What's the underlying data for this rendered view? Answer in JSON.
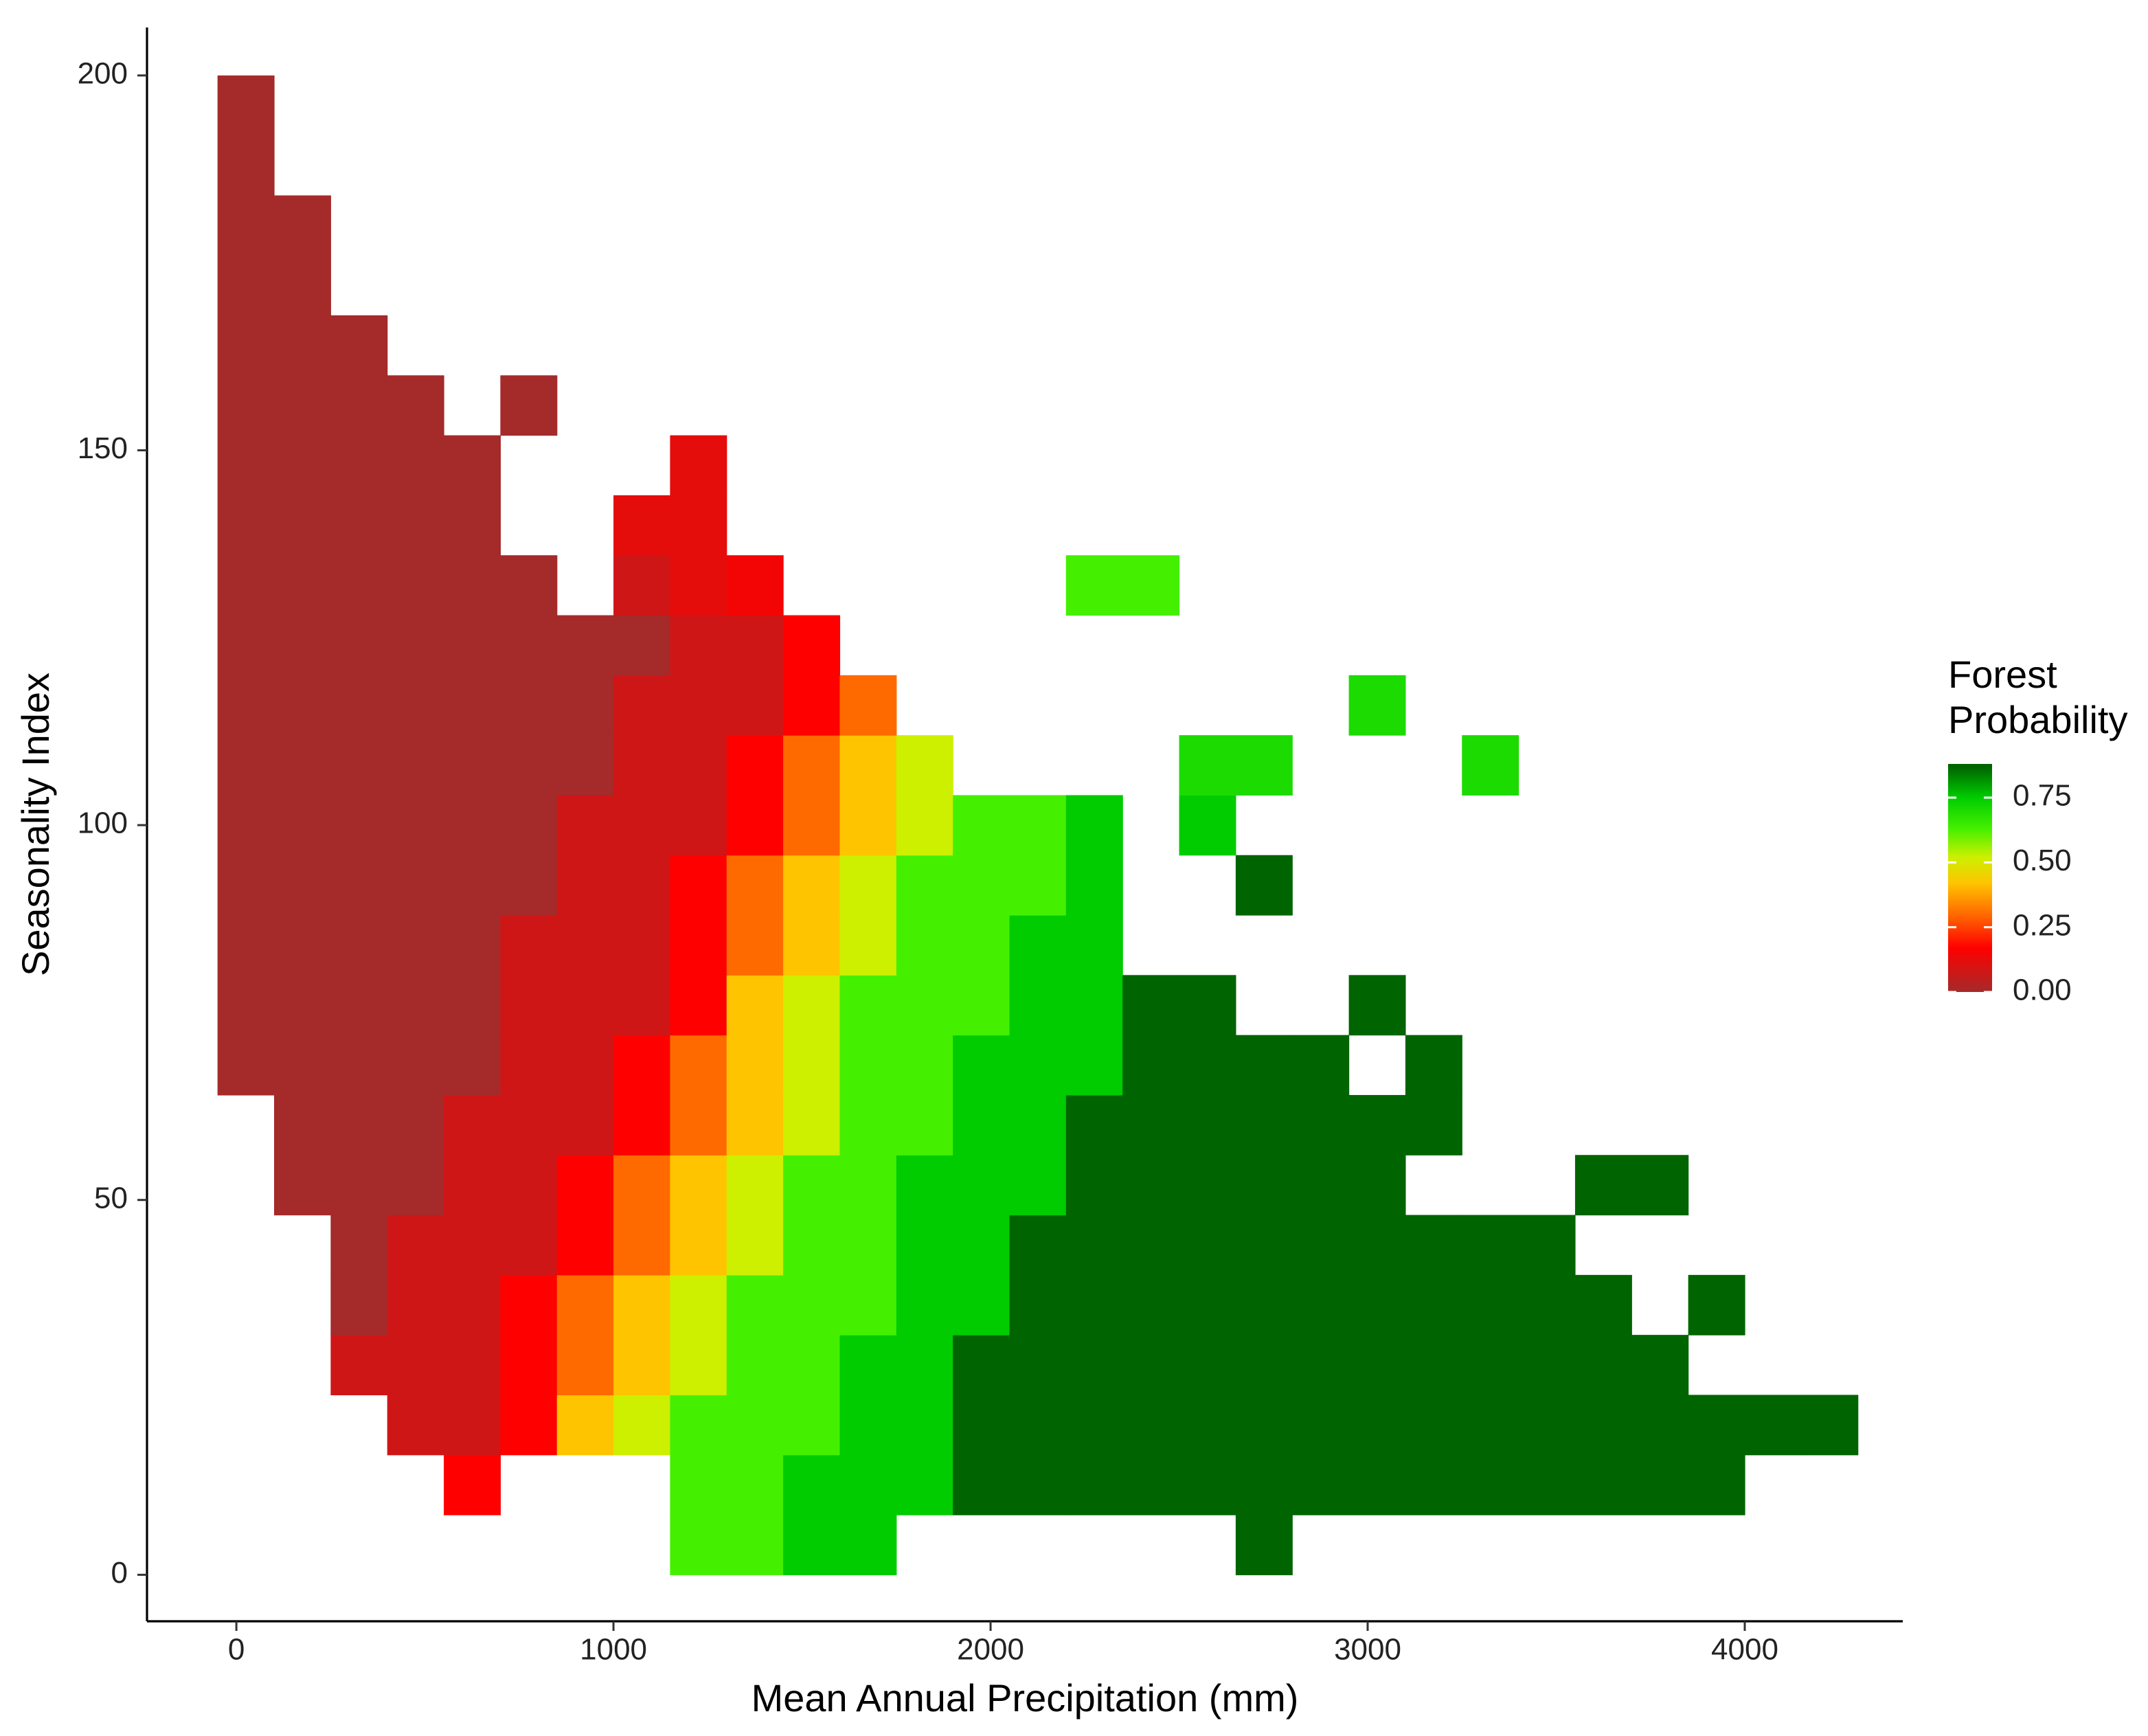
{
  "chart_data": {
    "type": "heatmap",
    "x_label": "Mean Annual Precipitation (mm)",
    "y_label": "Seasonality Index",
    "legend_title": [
      "Forest",
      "Probability"
    ],
    "xlim": [
      -237,
      4419
    ],
    "ylim": [
      -6.2,
      206.4
    ],
    "xticks": [
      0,
      1000,
      2000,
      3000,
      4000
    ],
    "yticks": [
      0,
      50,
      100,
      150,
      200
    ],
    "zlim": [
      0,
      0.88
    ],
    "legend_ticks": [
      {
        "value": 0,
        "label": "0.00"
      },
      0.25,
      {
        "value": 0.5,
        "label": "0.50"
      },
      0.75
    ],
    "colorscale": [
      {
        "value": 0,
        "color": "#a52a2a"
      },
      {
        "value": 0.17,
        "color": "#ff0000"
      },
      {
        "value": 0.3,
        "color": "#ff6a00"
      },
      {
        "value": 0.42,
        "color": "#ffc400"
      },
      {
        "value": 0.52,
        "color": "#ccf000"
      },
      {
        "value": 0.63,
        "color": "#44f000"
      },
      {
        "value": 0.75,
        "color": "#00cc00"
      },
      {
        "value": 0.87,
        "color": "#006400"
      }
    ],
    "x_bins": [
      -50,
      100,
      250,
      400,
      550,
      700,
      850,
      1000,
      1150,
      1300,
      1450,
      1600,
      1750,
      1900,
      2050,
      2200,
      2350,
      2500,
      2650,
      2800,
      2950,
      3100,
      3250,
      3400,
      3550,
      3700,
      3850,
      4000,
      4150,
      4300
    ],
    "y_bins": [
      0,
      8,
      16,
      24,
      32,
      40,
      48,
      56,
      64,
      72,
      80,
      88,
      96,
      104,
      112,
      120,
      128,
      136,
      144,
      152,
      160,
      168,
      176,
      184,
      192,
      200
    ],
    "z": [
      [
        null,
        null,
        null,
        null,
        null,
        null,
        null,
        null,
        0.63,
        0.63,
        0.75,
        0.75,
        null,
        null,
        null,
        null,
        null,
        null,
        0.87,
        null,
        null,
        null,
        null,
        null,
        null,
        null,
        null,
        null,
        null
      ],
      [
        null,
        null,
        null,
        null,
        0.17,
        null,
        null,
        null,
        0.63,
        0.63,
        0.75,
        0.75,
        0.75,
        0.87,
        0.87,
        0.87,
        0.87,
        0.87,
        0.87,
        0.87,
        0.87,
        0.87,
        0.87,
        0.87,
        0.87,
        0.87,
        0.87,
        null,
        null
      ],
      [
        null,
        null,
        null,
        0.08,
        0.08,
        0.17,
        0.42,
        0.52,
        0.63,
        0.63,
        0.63,
        0.75,
        0.75,
        0.87,
        0.87,
        0.87,
        0.87,
        0.87,
        0.87,
        0.87,
        0.87,
        0.87,
        0.87,
        0.87,
        0.87,
        0.87,
        0.87,
        0.87,
        0.87
      ],
      [
        null,
        null,
        0.08,
        0.08,
        0.08,
        0.17,
        0.3,
        0.42,
        0.52,
        0.63,
        0.63,
        0.75,
        0.75,
        0.87,
        0.87,
        0.87,
        0.87,
        0.87,
        0.87,
        0.87,
        0.87,
        0.87,
        0.87,
        0.87,
        0.87,
        0.87,
        null,
        null,
        null
      ],
      [
        null,
        null,
        0,
        0.08,
        0.08,
        0.17,
        0.3,
        0.42,
        0.52,
        0.63,
        0.63,
        0.63,
        0.75,
        0.75,
        0.87,
        0.87,
        0.87,
        0.87,
        0.87,
        0.87,
        0.87,
        0.87,
        0.87,
        0.87,
        0.87,
        null,
        0.87,
        null,
        null
      ],
      [
        null,
        null,
        0,
        0.08,
        0.08,
        0.08,
        0.17,
        0.3,
        0.42,
        0.52,
        0.63,
        0.63,
        0.75,
        0.75,
        0.87,
        0.87,
        0.87,
        0.87,
        0.87,
        0.87,
        0.87,
        0.87,
        0.87,
        0.87,
        null,
        null,
        null,
        null,
        null
      ],
      [
        null,
        0,
        0,
        0,
        0.08,
        0.08,
        0.17,
        0.3,
        0.42,
        0.52,
        0.63,
        0.63,
        0.75,
        0.75,
        0.75,
        0.87,
        0.87,
        0.87,
        0.87,
        0.87,
        0.87,
        null,
        null,
        null,
        0.87,
        0.87,
        null,
        null,
        null
      ],
      [
        null,
        0,
        0,
        0,
        0.08,
        0.08,
        0.08,
        0.17,
        0.3,
        0.42,
        0.52,
        0.63,
        0.63,
        0.75,
        0.75,
        0.87,
        0.87,
        0.87,
        0.87,
        0.87,
        0.87,
        0.87,
        null,
        null,
        null,
        null,
        null,
        null,
        null
      ],
      [
        0,
        0,
        0,
        0,
        0,
        0.08,
        0.08,
        0.17,
        0.3,
        0.42,
        0.52,
        0.63,
        0.63,
        0.75,
        0.75,
        0.75,
        0.87,
        0.87,
        0.87,
        0.87,
        null,
        0.87,
        null,
        null,
        null,
        null,
        null,
        null,
        null
      ],
      [
        0,
        0,
        0,
        0,
        0,
        0.08,
        0.08,
        0.08,
        0.17,
        0.42,
        0.52,
        0.63,
        0.63,
        0.63,
        0.75,
        0.75,
        0.87,
        0.87,
        null,
        null,
        0.87,
        null,
        null,
        null,
        null,
        null,
        null,
        null,
        null
      ],
      [
        0,
        0,
        0,
        0,
        0,
        0.08,
        0.08,
        0.08,
        0.17,
        0.3,
        0.42,
        0.52,
        0.63,
        0.63,
        0.75,
        0.75,
        null,
        null,
        null,
        null,
        null,
        null,
        null,
        null,
        null,
        null,
        null,
        null,
        null
      ],
      [
        0,
        0,
        0,
        0,
        0,
        0,
        0.08,
        0.08,
        0.17,
        0.3,
        0.42,
        0.52,
        0.63,
        0.63,
        0.63,
        0.75,
        null,
        null,
        0.87,
        null,
        null,
        null,
        null,
        null,
        null,
        null,
        null,
        null,
        null
      ],
      [
        0,
        0,
        0,
        0,
        0,
        0,
        0.08,
        0.08,
        0.08,
        0.17,
        0.3,
        0.42,
        0.52,
        0.63,
        0.63,
        0.75,
        null,
        0.75,
        null,
        null,
        null,
        null,
        null,
        null,
        null,
        null,
        null,
        null,
        null
      ],
      [
        0,
        0,
        0,
        0,
        0,
        0,
        0,
        0.08,
        0.08,
        0.17,
        0.3,
        0.42,
        0.52,
        null,
        null,
        null,
        null,
        0.7,
        0.7,
        null,
        null,
        null,
        0.7,
        null,
        null,
        null,
        null,
        null,
        null
      ],
      [
        0,
        0,
        0,
        0,
        0,
        0,
        0,
        0.08,
        0.08,
        0.08,
        0.17,
        0.3,
        null,
        null,
        null,
        null,
        null,
        null,
        null,
        null,
        0.7,
        null,
        null,
        null,
        null,
        null,
        null,
        null,
        null
      ],
      [
        0,
        0,
        0,
        0,
        0,
        0,
        0,
        0,
        0.08,
        0.08,
        0.17,
        null,
        null,
        null,
        null,
        null,
        null,
        null,
        null,
        null,
        null,
        null,
        null,
        null,
        null,
        null,
        null,
        null,
        null
      ],
      [
        0,
        0,
        0,
        0,
        0,
        0,
        null,
        0.08,
        0.12,
        0.15,
        null,
        null,
        null,
        null,
        null,
        0.63,
        0.63,
        null,
        null,
        null,
        null,
        null,
        null,
        null,
        null,
        null,
        null,
        null,
        null
      ],
      [
        0,
        0,
        0,
        0,
        0,
        null,
        null,
        0.12,
        0.12,
        null,
        null,
        null,
        null,
        null,
        null,
        null,
        null,
        null,
        null,
        null,
        null,
        null,
        null,
        null,
        null,
        null,
        null,
        null,
        null
      ],
      [
        0,
        0,
        0,
        0,
        0,
        null,
        null,
        null,
        0.12,
        null,
        null,
        null,
        null,
        null,
        null,
        null,
        null,
        null,
        null,
        null,
        null,
        null,
        null,
        null,
        null,
        null,
        null,
        null,
        null
      ],
      [
        0,
        0,
        0,
        0,
        null,
        0,
        null,
        null,
        null,
        null,
        null,
        null,
        null,
        null,
        null,
        null,
        null,
        null,
        null,
        null,
        null,
        null,
        null,
        null,
        null,
        null,
        null,
        null,
        null
      ],
      [
        0,
        0,
        0,
        null,
        null,
        null,
        null,
        null,
        null,
        null,
        null,
        null,
        null,
        null,
        null,
        null,
        null,
        null,
        null,
        null,
        null,
        null,
        null,
        null,
        null,
        null,
        null,
        null,
        null
      ],
      [
        0,
        0,
        null,
        null,
        null,
        null,
        null,
        null,
        null,
        null,
        null,
        null,
        null,
        null,
        null,
        null,
        null,
        null,
        null,
        null,
        null,
        null,
        null,
        null,
        null,
        null,
        null,
        null,
        null
      ],
      [
        0,
        0,
        null,
        null,
        null,
        null,
        null,
        null,
        null,
        null,
        null,
        null,
        null,
        null,
        null,
        null,
        null,
        null,
        null,
        null,
        null,
        null,
        null,
        null,
        null,
        null,
        null,
        null,
        null
      ],
      [
        0,
        null,
        null,
        null,
        null,
        null,
        null,
        null,
        null,
        null,
        null,
        null,
        null,
        null,
        null,
        null,
        null,
        null,
        null,
        null,
        null,
        null,
        null,
        null,
        null,
        null,
        null,
        null,
        null
      ],
      [
        0,
        null,
        null,
        null,
        null,
        null,
        null,
        null,
        null,
        null,
        null,
        null,
        null,
        null,
        null,
        null,
        null,
        null,
        null,
        null,
        null,
        null,
        null,
        null,
        null,
        null,
        null,
        null,
        null
      ]
    ]
  }
}
